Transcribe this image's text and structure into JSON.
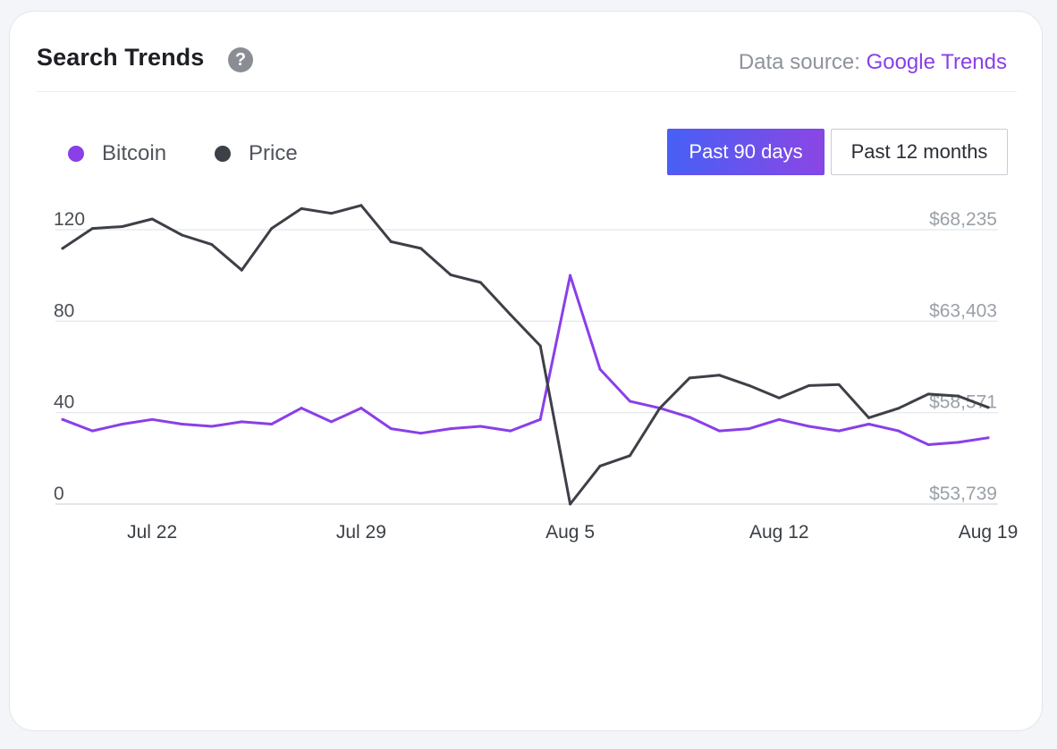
{
  "header": {
    "title": "Search Trends",
    "help_icon": "?",
    "source_label": "Data source: ",
    "source_link": "Google Trends"
  },
  "legend": [
    {
      "label": "Bitcoin",
      "color": "#8a3fe8"
    },
    {
      "label": "Price",
      "color": "#3d4047"
    }
  ],
  "range_buttons": {
    "active": "Past 90 days",
    "inactive": "Past 12 months"
  },
  "colors": {
    "accent": "#8a3fe8",
    "price_line": "#3d4047",
    "grid": "#e4e6ea",
    "left_tick": "#4a4e55",
    "right_tick": "#9aa0a8"
  },
  "chart_data": {
    "type": "line",
    "x_labels": [
      "Jul 22",
      "Jul 29",
      "Aug 5",
      "Aug 12",
      "Aug 19"
    ],
    "x_label_indices": [
      3,
      10,
      17,
      24,
      31
    ],
    "y_left": {
      "ticks": [
        "0",
        "40",
        "80",
        "120"
      ],
      "values": [
        0,
        40,
        80,
        120
      ],
      "range": [
        0,
        120
      ]
    },
    "y_right": {
      "ticks": [
        "$53,739",
        "$58,571",
        "$63,403",
        "$68,235"
      ],
      "values": [
        53739,
        58571,
        63403,
        68235
      ],
      "range": [
        53739,
        68235
      ]
    },
    "grid": true,
    "legend_position": "top-left",
    "series": [
      {
        "name": "Bitcoin",
        "axis": "left",
        "values": [
          37,
          32,
          35,
          37,
          35,
          34,
          36,
          35,
          42,
          36,
          42,
          33,
          31,
          33,
          34,
          32,
          37,
          100,
          59,
          45,
          42,
          38,
          32,
          33,
          37,
          34,
          32,
          35,
          32,
          26,
          27,
          29
        ]
      },
      {
        "name": "Price",
        "axis": "right",
        "values": [
          67250,
          68300,
          68400,
          68800,
          67950,
          67450,
          66100,
          68300,
          69350,
          69100,
          69520,
          67600,
          67250,
          65850,
          65450,
          63750,
          62100,
          53739,
          55750,
          56300,
          58800,
          60400,
          60550,
          60000,
          59350,
          60000,
          60050,
          58300,
          58800,
          59550,
          59450,
          58850
        ]
      }
    ]
  }
}
